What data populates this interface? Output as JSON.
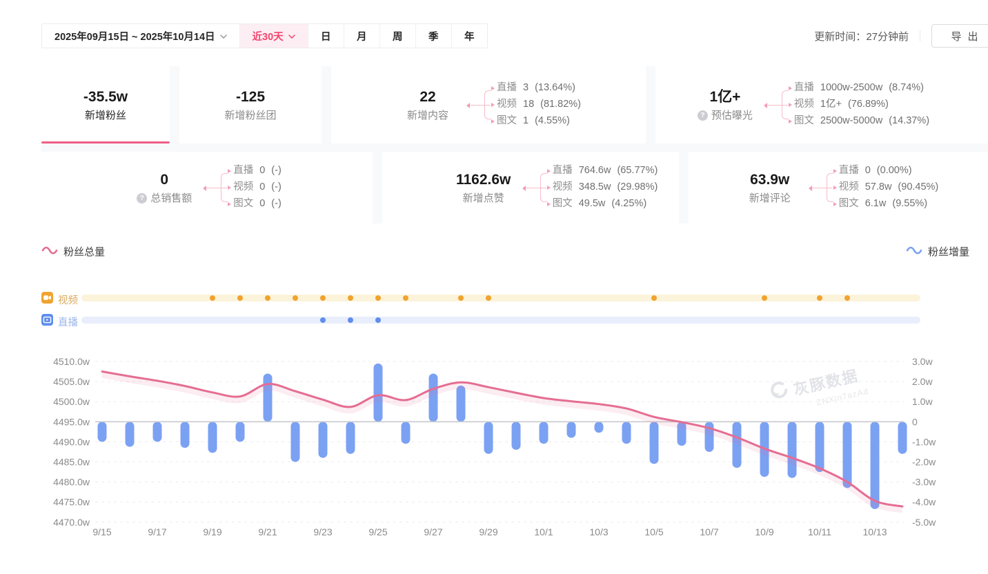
{
  "toolbar": {
    "date_range": "2025年09月15日 ~ 2025年10月14日",
    "quick_range": "近30天",
    "period_tabs": [
      "日",
      "月",
      "周",
      "季",
      "年"
    ],
    "update_time_label": "更新时间：",
    "update_time_value": "27分钟前",
    "export_label": "导出"
  },
  "stats": {
    "row1": [
      {
        "value": "-35.5w",
        "label": "新增粉丝",
        "active": true
      },
      {
        "value": "-125",
        "label": "新增粉丝团"
      },
      {
        "value": "22",
        "label": "新增内容",
        "breakdown": [
          {
            "name": "直播",
            "value": "3",
            "pct": "(13.64%)"
          },
          {
            "name": "视频",
            "value": "18",
            "pct": "(81.82%)"
          },
          {
            "name": "图文",
            "value": "1",
            "pct": "(4.55%)"
          }
        ]
      },
      {
        "value": "1亿+",
        "label": "预估曝光",
        "breakdown": [
          {
            "name": "直播",
            "value": "1000w-2500w",
            "pct": "(8.74%)"
          },
          {
            "name": "视频",
            "value": "1亿+",
            "pct": "(76.89%)"
          },
          {
            "name": "图文",
            "value": "2500w-5000w",
            "pct": "(14.37%)"
          }
        ]
      }
    ],
    "row2": [
      {
        "value": "0",
        "label": "总销售额",
        "breakdown": [
          {
            "name": "直播",
            "value": "0",
            "pct": "(-)"
          },
          {
            "name": "视频",
            "value": "0",
            "pct": "(-)"
          },
          {
            "name": "图文",
            "value": "0",
            "pct": "(-)"
          }
        ]
      },
      {
        "value": "1162.6w",
        "label": "新增点赞",
        "breakdown": [
          {
            "name": "直播",
            "value": "764.6w",
            "pct": "(65.77%)"
          },
          {
            "name": "视频",
            "value": "348.5w",
            "pct": "(29.98%)"
          },
          {
            "name": "图文",
            "value": "49.5w",
            "pct": "(4.25%)"
          }
        ]
      },
      {
        "value": "63.9w",
        "label": "新增评论",
        "breakdown": [
          {
            "name": "直播",
            "value": "0",
            "pct": "(0.00%)"
          },
          {
            "name": "视频",
            "value": "57.8w",
            "pct": "(90.45%)"
          },
          {
            "name": "图文",
            "value": "6.1w",
            "pct": "(9.55%)"
          }
        ]
      }
    ]
  },
  "legend": {
    "total": "粉丝总量",
    "delta": "粉丝增量"
  },
  "timeline": {
    "video_label": "视频",
    "live_label": "直播"
  },
  "watermark": {
    "brand": "灰豚数据",
    "code": "ZNXin7azAd"
  },
  "colors": {
    "accent_pink": "#f5436e",
    "accent_pink_bg": "#fdeef3",
    "underline_pink": "#ee5f87",
    "line_pink": "#e56d92",
    "bar_blue": "#7ba1f3",
    "video_orange": "#f0a32f",
    "video_track": "#fbf3da",
    "live_blue": "#5f8ded",
    "live_track": "#e8eefb",
    "connector_pink": "#f6bdca"
  },
  "chart_data": {
    "type": "line+bar",
    "x": [
      "9/15",
      "9/16",
      "9/17",
      "9/18",
      "9/19",
      "9/20",
      "9/21",
      "9/22",
      "9/23",
      "9/24",
      "9/25",
      "9/26",
      "9/27",
      "9/28",
      "9/29",
      "9/30",
      "10/1",
      "10/2",
      "10/3",
      "10/4",
      "10/5",
      "10/6",
      "10/7",
      "10/8",
      "10/9",
      "10/10",
      "10/11",
      "10/12",
      "10/13",
      "10/14"
    ],
    "x_axis_labels": [
      "9/15",
      "9/17",
      "9/19",
      "9/21",
      "9/23",
      "9/25",
      "9/27",
      "9/29",
      "10/1",
      "10/3",
      "10/5",
      "10/7",
      "10/9",
      "10/11",
      "10/13"
    ],
    "series": [
      {
        "name": "粉丝总量",
        "type": "line",
        "axis": "left",
        "unit": "w",
        "values": [
          4507.5,
          4506.3,
          4505.2,
          4503.9,
          4502.3,
          4501.3,
          4504.4,
          4502.6,
          4500.5,
          4498.7,
          4501.6,
          4500.4,
          4503.2,
          4504.8,
          4503.6,
          4502.2,
          4500.9,
          4500.1,
          4499.4,
          4498.3,
          4496.2,
          4494.9,
          4493.4,
          4491.1,
          4488.3,
          4486.0,
          4483.4,
          4480.0,
          4475.3,
          4473.9
        ]
      },
      {
        "name": "粉丝增量",
        "type": "bar",
        "axis": "right",
        "unit": "w",
        "values": [
          -1.0,
          -1.25,
          -1.0,
          -1.3,
          -1.55,
          -1.0,
          2.4,
          -2.0,
          -1.8,
          -1.6,
          2.9,
          -1.1,
          2.4,
          1.8,
          -1.6,
          -1.4,
          -1.1,
          -0.8,
          -0.55,
          -1.1,
          -2.1,
          -1.2,
          -1.5,
          -2.3,
          -2.75,
          -2.8,
          -2.5,
          -3.3,
          -4.35,
          -1.6
        ]
      }
    ],
    "left_axis": {
      "min": 4470,
      "max": 4510,
      "step": 5,
      "unit": "w"
    },
    "right_axis": {
      "min": -5,
      "max": 3,
      "step": 1,
      "unit": "w"
    },
    "grid": true,
    "video_marker_days": [
      4,
      5,
      6,
      7,
      8,
      9,
      10,
      11,
      13,
      14,
      20,
      24,
      26,
      27
    ],
    "live_marker_days": [
      8,
      9,
      10
    ]
  }
}
